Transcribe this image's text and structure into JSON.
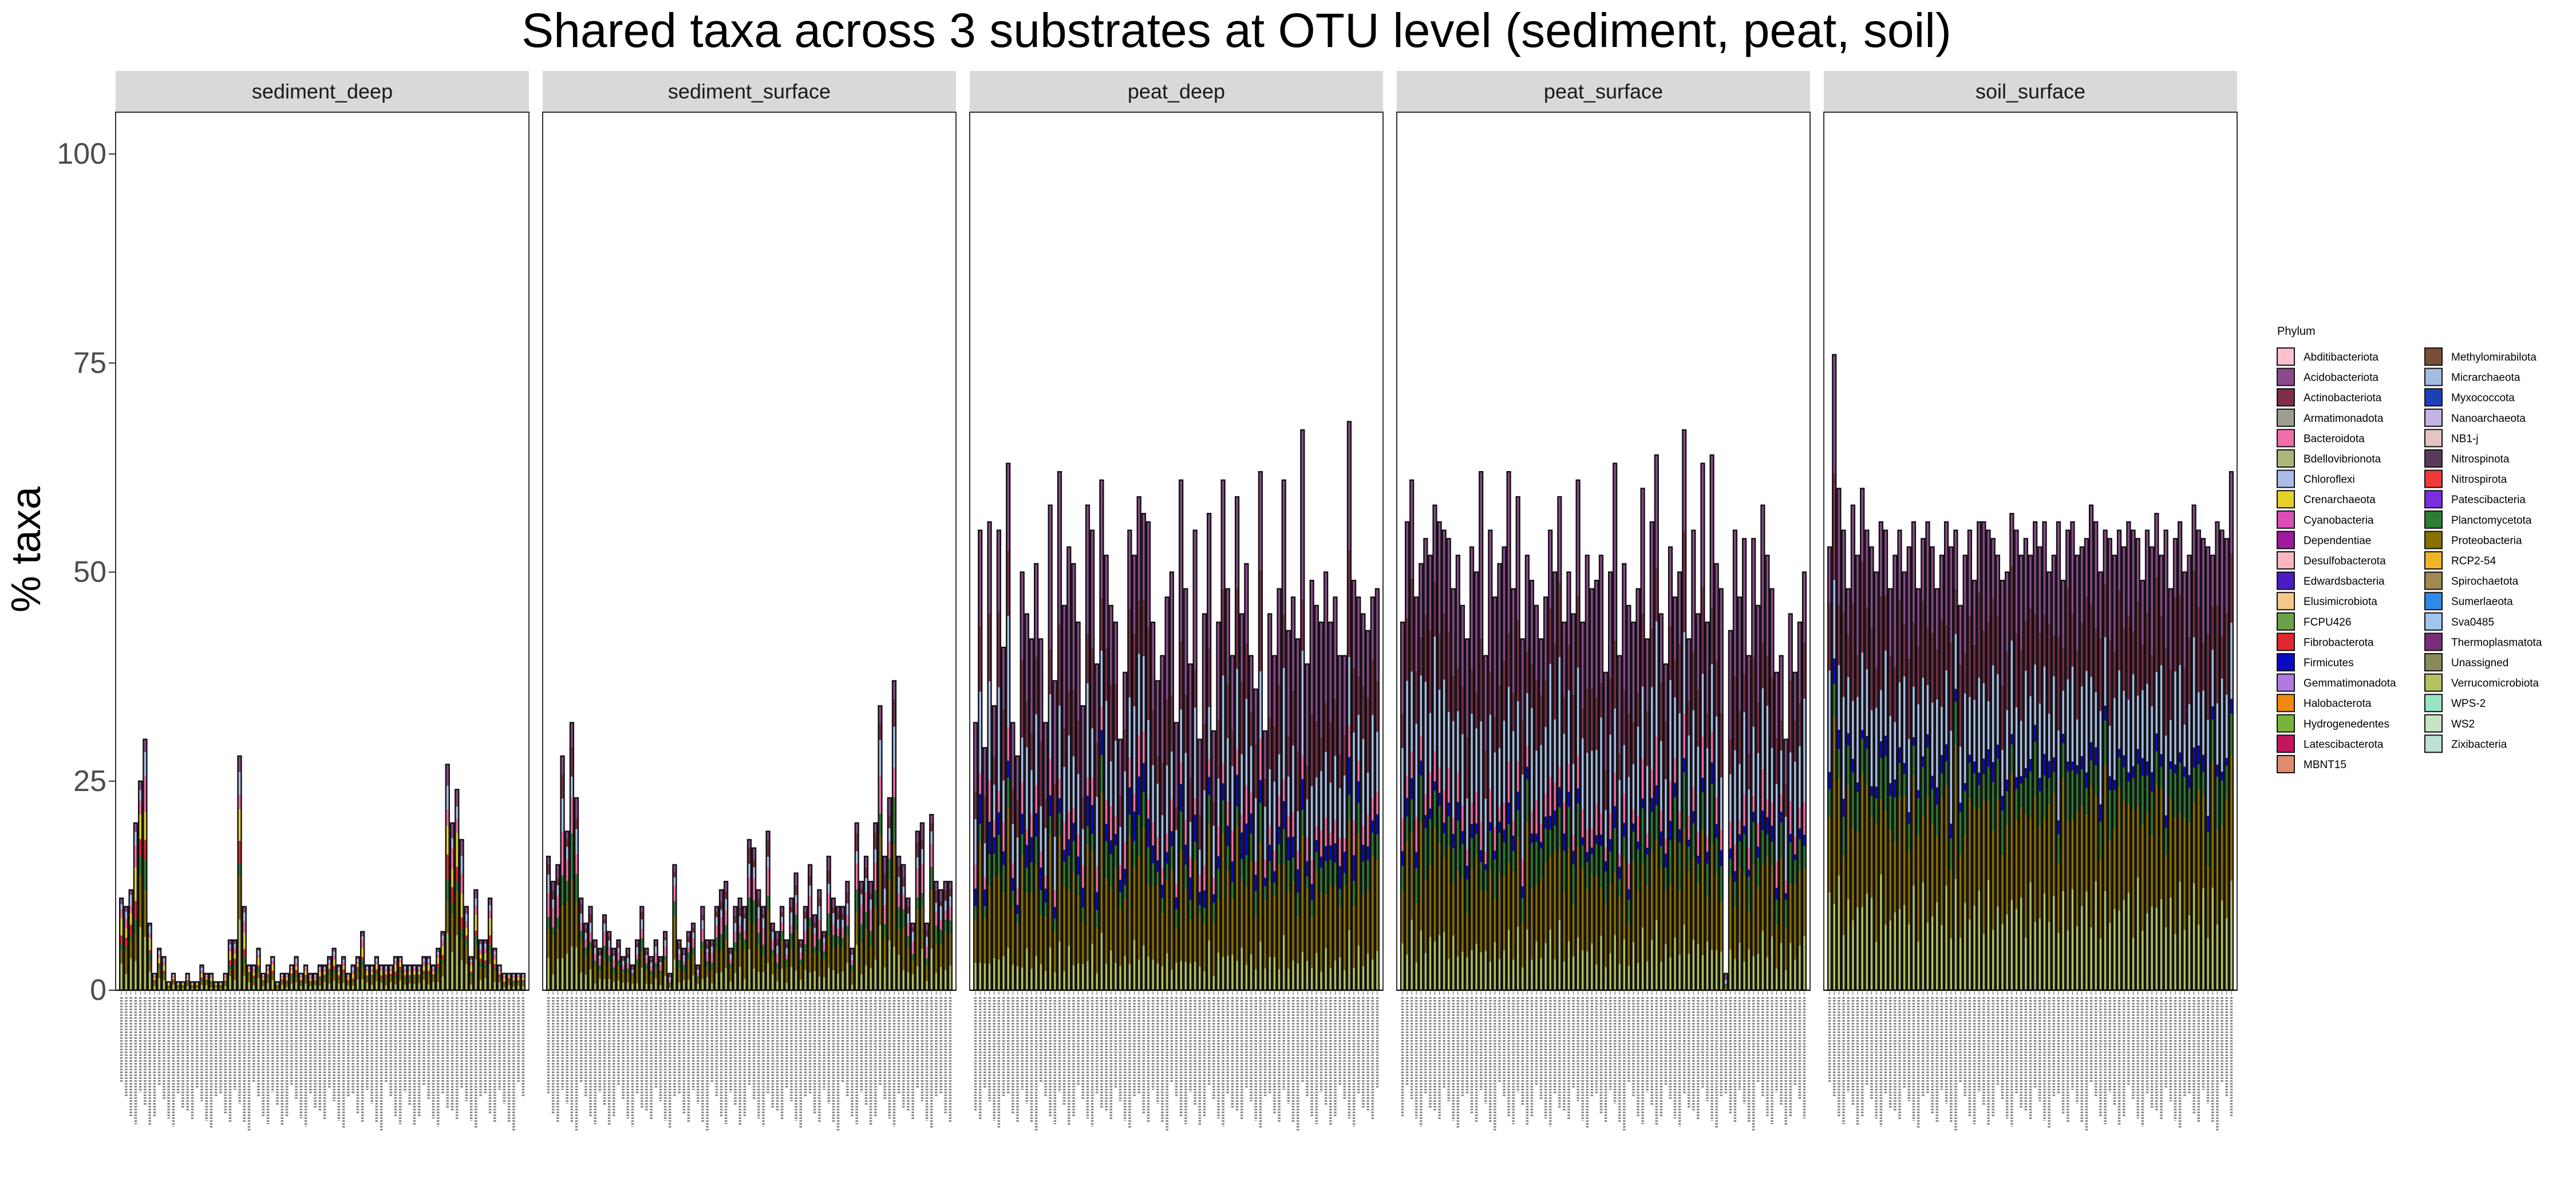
{
  "chart_data": {
    "type": "bar",
    "stacked": true,
    "title": "Shared taxa across 3 substrates at OTU level (sediment, peat, soil)",
    "ylabel": "% taxa",
    "xlabel": "",
    "ylim": [
      0,
      105
    ],
    "yticks": [
      0,
      25,
      50,
      75,
      100
    ],
    "grid": false,
    "legend": {
      "title": "Phylum",
      "position": "right",
      "entries": [
        {
          "name": "Abditibacteriota",
          "color": "#FFC0CB"
        },
        {
          "name": "Acidobacteriota",
          "color": "#8B4A8B"
        },
        {
          "name": "Actinobacteriota",
          "color": "#7A2E4A"
        },
        {
          "name": "Armatimonadota",
          "color": "#9E9E8E"
        },
        {
          "name": "Bacteroidota",
          "color": "#F06EA9"
        },
        {
          "name": "Bdellovibrionota",
          "color": "#A8B87A"
        },
        {
          "name": "Chloroflexi",
          "color": "#A9BDE8"
        },
        {
          "name": "Crenarchaeota",
          "color": "#E6D02A"
        },
        {
          "name": "Cyanobacteria",
          "color": "#D94DB5"
        },
        {
          "name": "Dependentiae",
          "color": "#A01AA0"
        },
        {
          "name": "Desulfobacterota",
          "color": "#F7B6C2"
        },
        {
          "name": "Edwardsbacteria",
          "color": "#4B1CC4"
        },
        {
          "name": "Elusimicrobiota",
          "color": "#F5C98A"
        },
        {
          "name": "FCPU426",
          "color": "#6BA14A"
        },
        {
          "name": "Fibrobacterota",
          "color": "#E0282E"
        },
        {
          "name": "Firmicutes",
          "color": "#0A0AC2"
        },
        {
          "name": "Gemmatimonadota",
          "color": "#B07AE0"
        },
        {
          "name": "Halobacterota",
          "color": "#F08A0A"
        },
        {
          "name": "Hydrogenedentes",
          "color": "#78B43C"
        },
        {
          "name": "Latescibacterota",
          "color": "#C2185B"
        },
        {
          "name": "MBNT15",
          "color": "#E08A70"
        },
        {
          "name": "Methylomirabilota",
          "color": "#7A4E35"
        },
        {
          "name": "Micrarchaeota",
          "color": "#A4BCE4"
        },
        {
          "name": "Myxococcota",
          "color": "#1F3FB5"
        },
        {
          "name": "Nanoarchaeota",
          "color": "#C4B4E4"
        },
        {
          "name": "NB1-j",
          "color": "#E4C4C4"
        },
        {
          "name": "Nitrospinota",
          "color": "#5A3A5A"
        },
        {
          "name": "Nitrospirota",
          "color": "#F03A3A"
        },
        {
          "name": "Patescibacteria",
          "color": "#7A2EE0"
        },
        {
          "name": "Planctomycetota",
          "color": "#2E7D32"
        },
        {
          "name": "Proteobacteria",
          "color": "#8A7000"
        },
        {
          "name": "RCP2-54",
          "color": "#F0B428"
        },
        {
          "name": "Spirochaetota",
          "color": "#A08A50"
        },
        {
          "name": "Sumerlaeota",
          "color": "#2E8AE6"
        },
        {
          "name": "Sva0485",
          "color": "#A4C4F0"
        },
        {
          "name": "Thermoplasmatota",
          "color": "#7A2E7A"
        },
        {
          "name": "Unassigned",
          "color": "#8A8A5A"
        },
        {
          "name": "Verrucomicrobiota",
          "color": "#B5C060"
        },
        {
          "name": "WPS-2",
          "color": "#9AE4C4"
        },
        {
          "name": "WS2",
          "color": "#C4E4C4"
        },
        {
          "name": "Zixibacteria",
          "color": "#BFE0D4"
        }
      ]
    },
    "panels": [
      {
        "name": "sediment_deep",
        "totals": [
          11,
          10,
          12,
          20,
          25,
          30,
          8,
          2,
          5,
          4,
          1,
          2,
          1,
          1,
          2,
          1,
          1,
          3,
          2,
          2,
          1,
          1,
          2,
          6,
          6,
          28,
          10,
          3,
          3,
          5,
          2,
          3,
          4,
          1,
          2,
          2,
          3,
          4,
          2,
          3,
          2,
          2,
          3,
          3,
          4,
          5,
          3,
          4,
          2,
          3,
          4,
          7,
          3,
          3,
          4,
          3,
          3,
          3,
          4,
          4,
          3,
          3,
          3,
          3,
          4,
          4,
          3,
          5,
          7,
          27,
          20,
          24,
          18,
          10,
          4,
          12,
          6,
          6,
          11,
          5,
          3,
          2,
          2,
          2,
          2,
          2
        ],
        "composition": [
          {
            "phylum": "Verrucomicrobiota",
            "share": 0.25
          },
          {
            "phylum": "Proteobacteria",
            "share": 0.2
          },
          {
            "phylum": "Planctomycetota",
            "share": 0.08
          },
          {
            "phylum": "Fibrobacterota",
            "share": 0.08
          },
          {
            "phylum": "Crenarchaeota",
            "share": 0.14
          },
          {
            "phylum": "Bacteroidota",
            "share": 0.1
          },
          {
            "phylum": "Chloroflexi",
            "share": 0.08
          },
          {
            "phylum": "Acidobacteriota",
            "share": 0.07
          }
        ]
      },
      {
        "name": "sediment_surface",
        "totals": [
          16,
          13,
          15,
          28,
          19,
          32,
          23,
          11,
          8,
          10,
          6,
          5,
          9,
          7,
          5,
          6,
          4,
          5,
          3,
          6,
          10,
          5,
          4,
          6,
          4,
          7,
          2,
          15,
          6,
          5,
          7,
          8,
          3,
          10,
          6,
          6,
          10,
          12,
          13,
          5,
          10,
          11,
          10,
          18,
          17,
          12,
          10,
          19,
          8,
          7,
          10,
          6,
          11,
          14,
          6,
          10,
          15,
          9,
          12,
          7,
          16,
          11,
          10,
          10,
          13,
          5,
          20,
          13,
          16,
          13,
          20,
          34,
          16,
          23,
          37,
          16,
          15,
          11,
          8,
          19,
          20,
          8,
          21,
          13,
          12,
          13,
          13
        ],
        "composition": [
          {
            "phylum": "Verrucomicrobiota",
            "share": 0.2
          },
          {
            "phylum": "Proteobacteria",
            "share": 0.28
          },
          {
            "phylum": "Planctomycetota",
            "share": 0.12
          },
          {
            "phylum": "Bacteroidota",
            "share": 0.14
          },
          {
            "phylum": "Chloroflexi",
            "share": 0.1
          },
          {
            "phylum": "Actinobacteriota",
            "share": 0.08
          },
          {
            "phylum": "Acidobacteriota",
            "share": 0.08
          }
        ]
      },
      {
        "name": "peat_deep",
        "totals": [
          32,
          55,
          29,
          56,
          34,
          55,
          41,
          63,
          32,
          28,
          50,
          45,
          42,
          51,
          42,
          32,
          58,
          37,
          62,
          46,
          53,
          51,
          44,
          34,
          58,
          55,
          39,
          61,
          52,
          46,
          44,
          30,
          38,
          55,
          52,
          59,
          57,
          56,
          44,
          37,
          40,
          47,
          50,
          32,
          61,
          48,
          39,
          55,
          30,
          45,
          57,
          31,
          44,
          61,
          48,
          40,
          59,
          45,
          51,
          40,
          36,
          62,
          31,
          45,
          40,
          48,
          61,
          43,
          47,
          42,
          67,
          39,
          49,
          46,
          44,
          50,
          44,
          47,
          40,
          40,
          68,
          49,
          47,
          45,
          43,
          47,
          48
        ],
        "composition": [
          {
            "phylum": "Verrucomicrobiota",
            "share": 0.08
          },
          {
            "phylum": "Proteobacteria",
            "share": 0.2
          },
          {
            "phylum": "Planctomycetota",
            "share": 0.06
          },
          {
            "phylum": "Firmicutes",
            "share": 0.05
          },
          {
            "phylum": "Bacteroidota",
            "share": 0.06
          },
          {
            "phylum": "Chloroflexi",
            "share": 0.16
          },
          {
            "phylum": "Actinobacteriota",
            "share": 0.14
          },
          {
            "phylum": "Acidobacteriota",
            "share": 0.25
          }
        ]
      },
      {
        "name": "peat_surface",
        "totals": [
          44,
          56,
          61,
          47,
          51,
          54,
          52,
          58,
          56,
          55,
          54,
          48,
          52,
          46,
          42,
          53,
          50,
          62,
          40,
          55,
          47,
          51,
          53,
          62,
          48,
          59,
          42,
          52,
          49,
          46,
          42,
          47,
          55,
          50,
          59,
          44,
          50,
          45,
          61,
          44,
          52,
          48,
          49,
          52,
          38,
          50,
          63,
          40,
          51,
          46,
          44,
          48,
          60,
          42,
          56,
          64,
          45,
          39,
          53,
          47,
          50,
          67,
          42,
          55,
          45,
          63,
          44,
          64,
          51,
          48,
          2,
          43,
          55,
          47,
          54,
          40,
          54,
          46,
          58,
          52,
          48,
          38,
          40,
          30,
          45,
          38,
          44,
          50
        ],
        "composition": [
          {
            "phylum": "Verrucomicrobiota",
            "share": 0.1
          },
          {
            "phylum": "Proteobacteria",
            "share": 0.18
          },
          {
            "phylum": "Planctomycetota",
            "share": 0.08
          },
          {
            "phylum": "Firmicutes",
            "share": 0.03
          },
          {
            "phylum": "Bacteroidota",
            "share": 0.06
          },
          {
            "phylum": "Chloroflexi",
            "share": 0.18
          },
          {
            "phylum": "Actinobacteriota",
            "share": 0.13
          },
          {
            "phylum": "Acidobacteriota",
            "share": 0.24
          }
        ]
      },
      {
        "name": "soil_surface",
        "totals": [
          53,
          76,
          60,
          55,
          48,
          58,
          52,
          60,
          55,
          53,
          50,
          56,
          55,
          48,
          52,
          55,
          50,
          53,
          56,
          48,
          54,
          56,
          53,
          48,
          52,
          56,
          53,
          55,
          46,
          52,
          55,
          49,
          56,
          56,
          55,
          54,
          52,
          49,
          50,
          57,
          55,
          52,
          54,
          52,
          56,
          53,
          56,
          50,
          52,
          56,
          49,
          55,
          56,
          52,
          53,
          54,
          58,
          56,
          50,
          55,
          54,
          52,
          55,
          53,
          56,
          55,
          54,
          49,
          55,
          53,
          57,
          52,
          55,
          48,
          54,
          56,
          50,
          52,
          58,
          55,
          54,
          53,
          52,
          56,
          55,
          54,
          62
        ],
        "composition": [
          {
            "phylum": "Verrucomicrobiota",
            "share": 0.18
          },
          {
            "phylum": "Proteobacteria",
            "share": 0.22
          },
          {
            "phylum": "Planctomycetota",
            "share": 0.08
          },
          {
            "phylum": "Firmicutes",
            "share": 0.03
          },
          {
            "phylum": "Chloroflexi",
            "share": 0.16
          },
          {
            "phylum": "Actinobacteriota",
            "share": 0.15
          },
          {
            "phylum": "Acidobacteriota",
            "share": 0.18
          }
        ]
      }
    ]
  }
}
